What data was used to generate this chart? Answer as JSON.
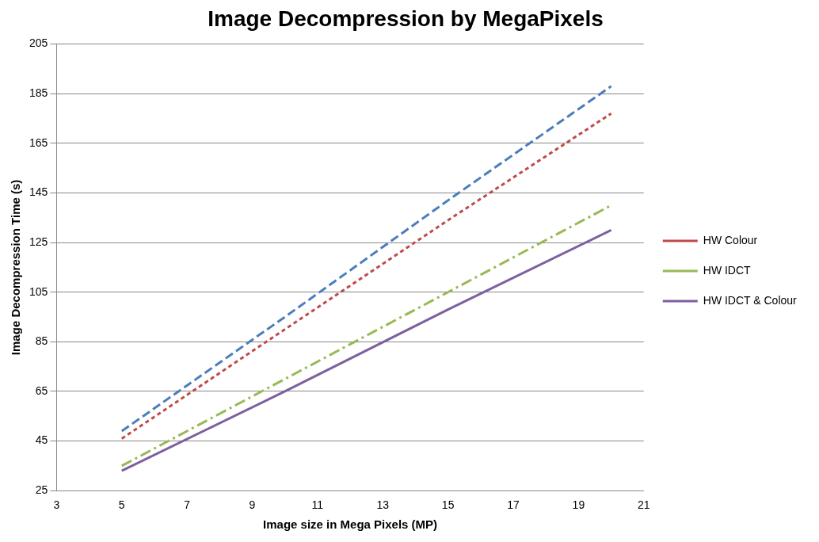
{
  "chart_data": {
    "type": "line",
    "title": "Image Decompression by MegaPixels",
    "xlabel": "Image size in Mega Pixels (MP)",
    "ylabel": "Image Decompression Time (s)",
    "x": [
      5,
      10,
      15,
      20
    ],
    "series": [
      {
        "color": "#4a7ebb",
        "line_style": "dashed",
        "values": [
          49,
          95,
          142,
          188
        ]
      },
      {
        "name": "HW Colour",
        "color": "#be4b48",
        "line_style": "dotted",
        "values": [
          46,
          90,
          134,
          177
        ]
      },
      {
        "name": "HW IDCT",
        "color": "#98b954",
        "line_style": "dashdot",
        "values": [
          35,
          70,
          105,
          140
        ]
      },
      {
        "name": "HW IDCT & Colour",
        "color": "#7d60a0",
        "line_style": "solid",
        "values": [
          33,
          65,
          98,
          130
        ]
      }
    ],
    "xlim": [
      3,
      21
    ],
    "xticks": [
      3,
      5,
      7,
      9,
      11,
      13,
      15,
      17,
      19,
      21
    ],
    "ylim": [
      25,
      205
    ],
    "yticks": [
      25,
      45,
      65,
      85,
      105,
      125,
      145,
      165,
      185,
      205
    ],
    "grid": "y",
    "legend": "right",
    "marker": "none"
  }
}
